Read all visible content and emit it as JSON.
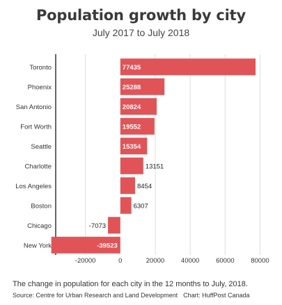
{
  "chart_data": {
    "type": "bar",
    "orientation": "horizontal",
    "title": "Population growth by city",
    "subtitle": "July 2017 to July 2018",
    "categories": [
      "Toronto",
      "Phoenix",
      "San Antonio",
      "Fort Worth",
      "Seattle",
      "Charlotte",
      "Los Angeles",
      "Boston",
      "Chicago",
      "New York"
    ],
    "values": [
      77435,
      25288,
      20824,
      19552,
      15354,
      13151,
      8454,
      6307,
      -7073,
      -39523
    ],
    "xlim": [
      -37000,
      85000
    ],
    "xticks": [
      -20000,
      0,
      20000,
      40000,
      60000,
      80000
    ],
    "xtick_labels": [
      "-20000",
      "0",
      "20000",
      "40000",
      "60000",
      "80000"
    ],
    "grid": "vertical",
    "colors": {
      "bar": "#e05458",
      "grid": "#dddddd",
      "axis": "#333333",
      "label_inside": "#ffffff",
      "label_outside": "#222222"
    }
  },
  "footer": {
    "note": "The change in population for each city in the 12 months to July, 2018.",
    "source": "Source: Centre for Urban Research and Land Development",
    "credit": "Chart: HuffPost Canada"
  }
}
